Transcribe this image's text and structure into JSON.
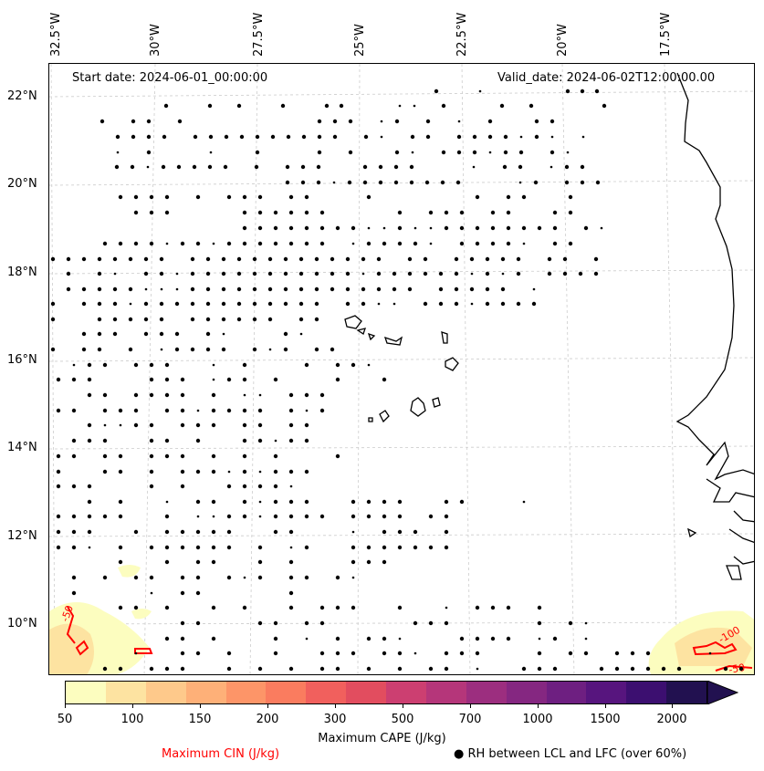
{
  "map": {
    "start_date": "Start date: 2024-06-01_00:00:00",
    "valid_date": "Valid_date: 2024-06-02T12:00:00.00",
    "lon_labels": [
      "32.5°W",
      "30°W",
      "27.5°W",
      "25°W",
      "22.5°W",
      "20°W",
      "17.5°W"
    ],
    "lat_labels": [
      "22°N",
      "20°N",
      "18°N",
      "16°N",
      "14°N",
      "12°N",
      "10°N"
    ],
    "grid": true,
    "cin_contour_labels": [
      "-50",
      "-100",
      "-50"
    ],
    "colors": {
      "coastline": "#000000",
      "cin_contour": "#ff0000",
      "rh_dot": "#000000",
      "grid": "#cccccc"
    }
  },
  "colorbar": {
    "label": "Maximum CAPE (J/kg)",
    "ticks": [
      "50",
      "100",
      "150",
      "200",
      "300",
      "500",
      "700",
      "1000",
      "1500",
      "2000"
    ],
    "colors": [
      "#fcfdbf",
      "#fde3a1",
      "#fec98b",
      "#feb078",
      "#fd9568",
      "#fa7c5f",
      "#f1605d",
      "#e24d5f",
      "#cc3f71",
      "#b5367a",
      "#9c2e7f",
      "#852781",
      "#6e1f81",
      "#57157e",
      "#3c0f70",
      "#221150"
    ],
    "extend": "max"
  },
  "legend": {
    "cin_label": "Maximum CIN (J/kg)",
    "rh_label": "● RH between LCL and LFC (over 60%)",
    "cin_color": "#ff0000"
  }
}
